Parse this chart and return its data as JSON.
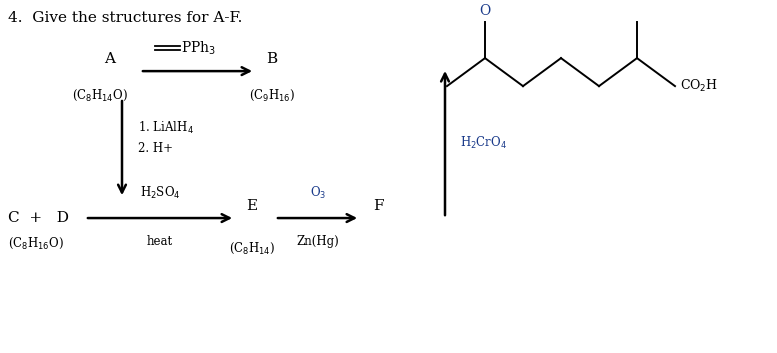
{
  "title": "4.  Give the structures for A-F.",
  "background_color": "#ffffff",
  "text_color": "#000000",
  "arrow_color": "#1a1a1a",
  "blue_color": "#1a3a8a",
  "o_color": "#1a3a8a",
  "figsize": [
    7.77,
    3.53
  ],
  "dpi": 100,
  "xlim": [
    0,
    7.77
  ],
  "ylim": [
    0,
    3.53
  ]
}
